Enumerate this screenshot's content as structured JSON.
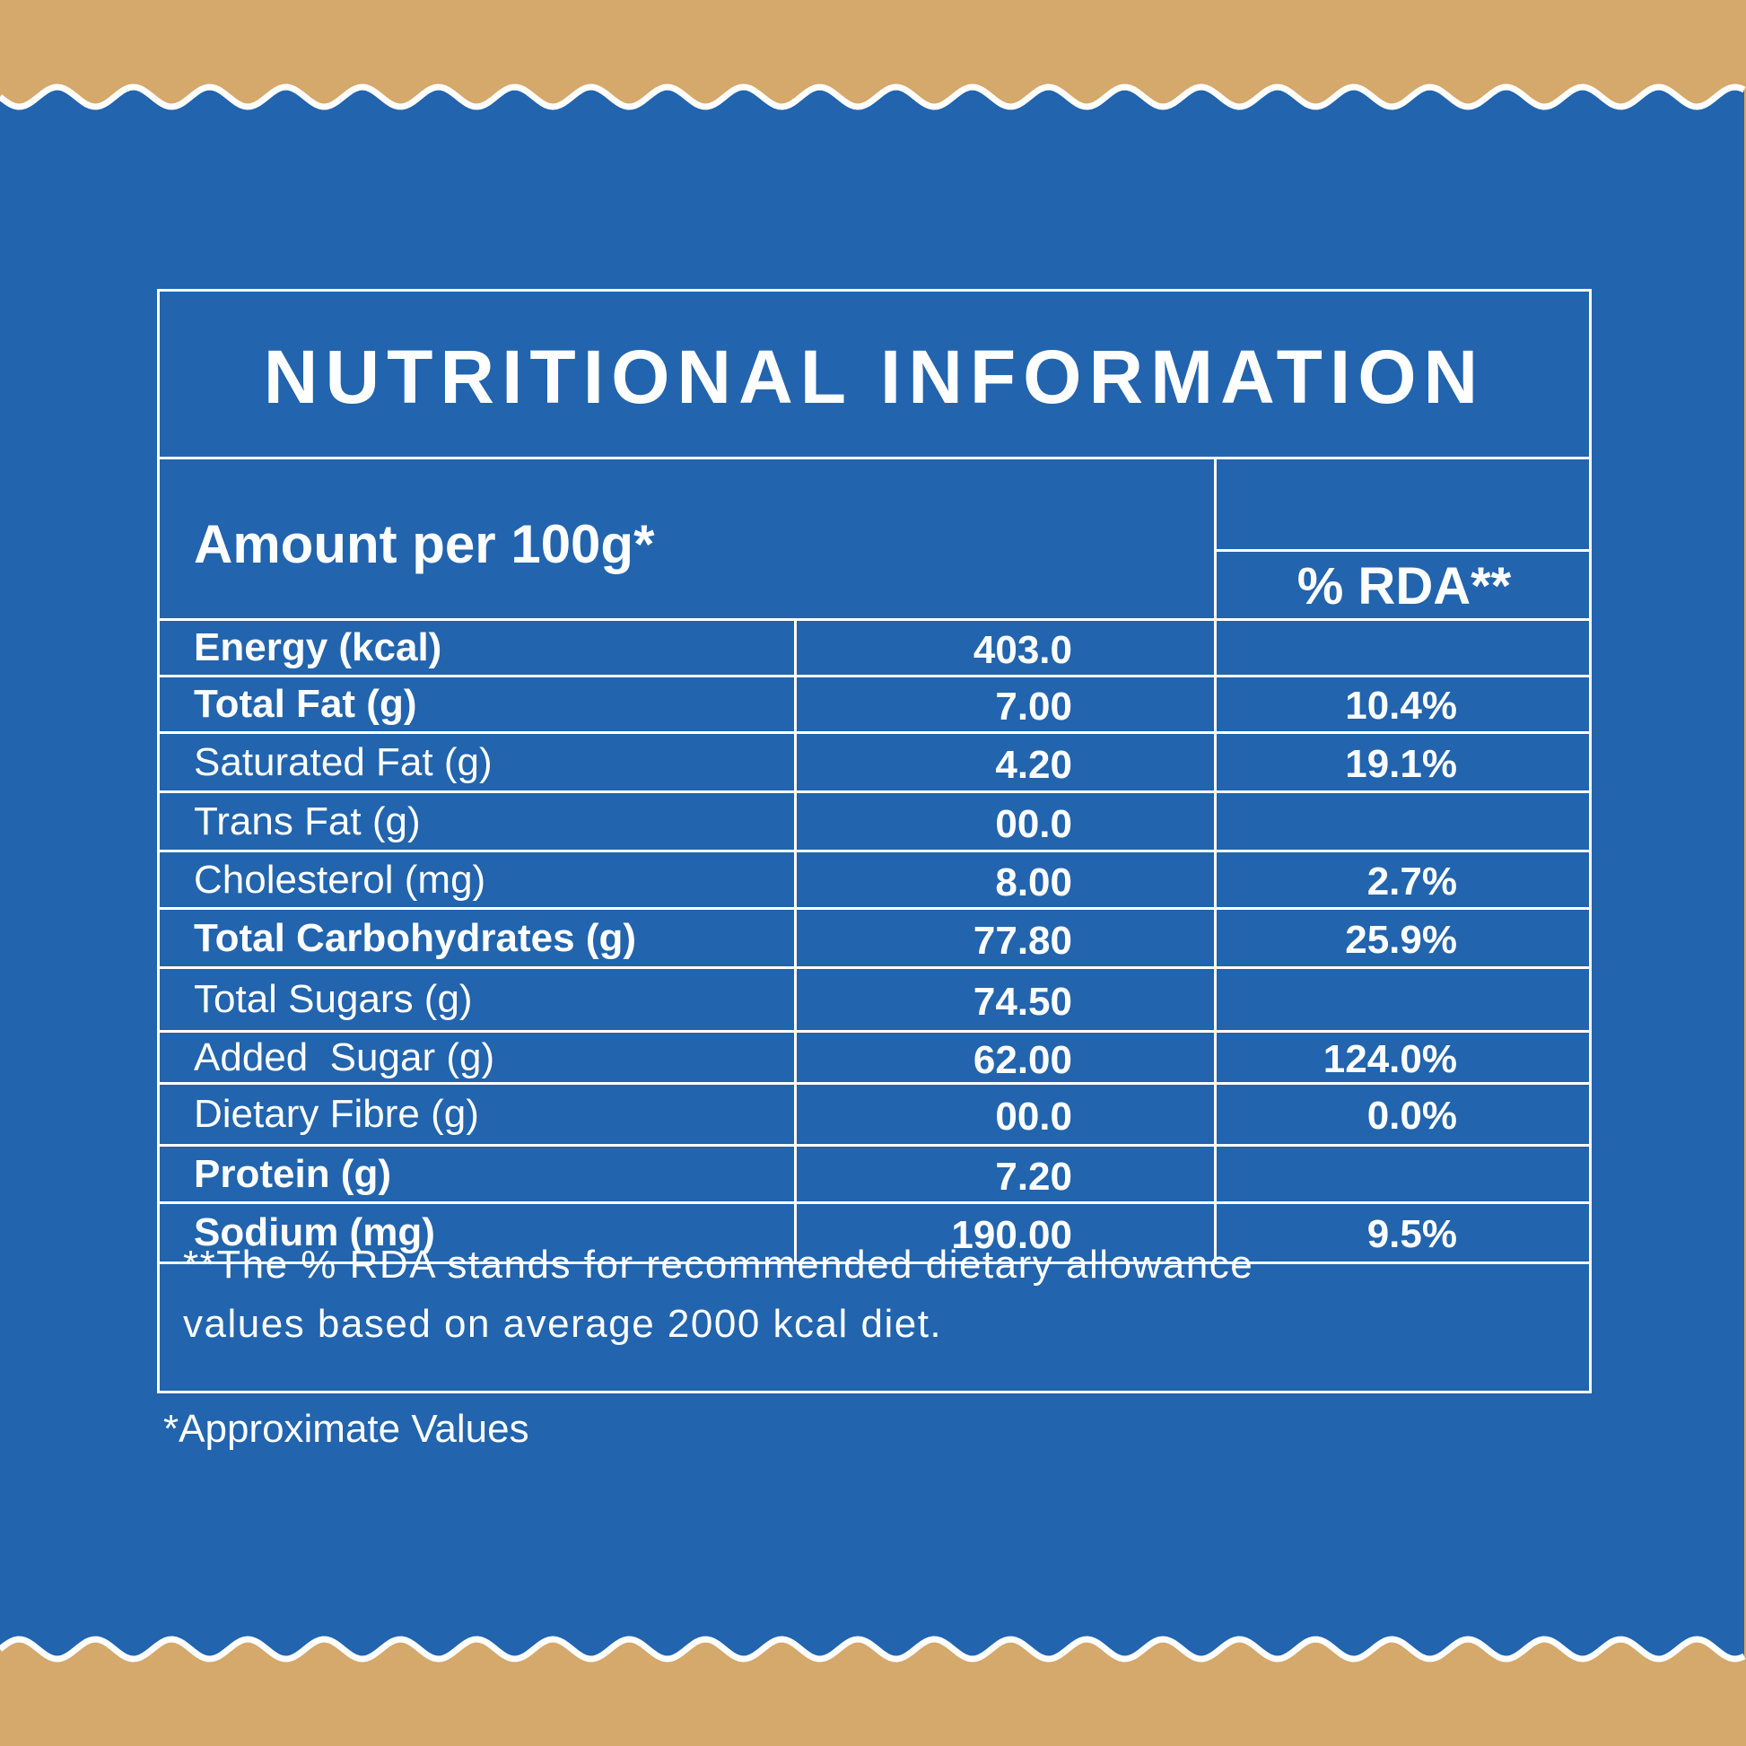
{
  "colors": {
    "background": "#d5a86b",
    "panel": "#2264ae",
    "line": "#ffffff"
  },
  "title": "NUTRITIONAL INFORMATION",
  "header": {
    "amount_label": "Amount per 100g*",
    "rda_label": "% RDA**"
  },
  "rows": [
    {
      "label": "Energy (kcal)",
      "amount": "403.0",
      "rda": "",
      "bold": true
    },
    {
      "label": "Total Fat (g)",
      "amount": "7.00",
      "rda": "10.4%",
      "bold": true
    },
    {
      "label": "Saturated Fat (g)",
      "amount": "4.20",
      "rda": "19.1%",
      "bold": false
    },
    {
      "label": "Trans Fat (g)",
      "amount": "00.0",
      "rda": "",
      "bold": false
    },
    {
      "label": "Cholesterol (mg)",
      "amount": "8.00",
      "rda": "2.7%",
      "bold": false
    },
    {
      "label": "Total Carbohydrates (g)",
      "amount": "77.80",
      "rda": "25.9%",
      "bold": true
    },
    {
      "label": "Total Sugars (g)",
      "amount": "74.50",
      "rda": "",
      "bold": false
    },
    {
      "label": "Added  Sugar (g)",
      "amount": "62.00",
      "rda": "124.0%",
      "bold": false
    },
    {
      "label": "Dietary Fibre (g)",
      "amount": "00.0",
      "rda": "0.0%",
      "bold": false
    },
    {
      "label": "Protein (g)",
      "amount": "7.20",
      "rda": "",
      "bold": true
    },
    {
      "label": "Sodium (mg)",
      "amount": "190.00",
      "rda": "9.5%",
      "bold": true
    }
  ],
  "footnote": {
    "line1": "**The % RDA stands for recommended dietary allowance",
    "line2": "values based on average 2000 kcal diet."
  },
  "approximate_note": "*Approximate Values"
}
